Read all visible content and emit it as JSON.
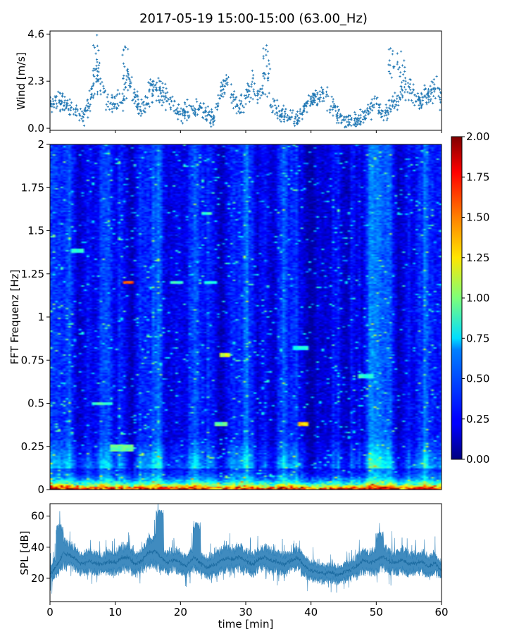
{
  "title": "2017-05-19 15:00-15:00 (63.00_Hz)",
  "chart_data": [
    {
      "type": "scatter",
      "panel": "wind",
      "ylabel": "Wind [m/s]",
      "yticks": [
        "0.0",
        "2.3",
        "4.6"
      ],
      "ytick_values": [
        0.0,
        2.3,
        4.6
      ],
      "xlim": [
        0,
        60
      ],
      "ylim": [
        -0.1,
        4.75
      ],
      "color": "#1f77b4",
      "marker": "plus",
      "segments": [
        {
          "x": [
            0,
            2,
            3,
            4,
            5,
            6,
            7,
            8,
            9,
            10,
            11,
            12,
            13,
            14,
            15,
            16,
            17,
            18,
            19,
            20
          ],
          "y": [
            1.2,
            1.2,
            1.1,
            0.8,
            0.5,
            1.2,
            2.6,
            2.0,
            1.0,
            1.2,
            1.5,
            2.2,
            1.6,
            0.9,
            1.5,
            2.2,
            1.8,
            1.3,
            1.0,
            0.8
          ]
        },
        {
          "x": [
            20,
            22,
            23,
            24,
            25,
            26,
            27,
            28,
            29,
            30,
            31,
            32,
            33,
            34,
            35,
            36,
            37,
            38,
            39,
            40
          ],
          "y": [
            0.8,
            0.9,
            1.0,
            0.8,
            0.4,
            1.6,
            2.4,
            1.5,
            1.0,
            1.5,
            2.2,
            1.6,
            2.3,
            1.4,
            0.8,
            0.6,
            0.5,
            0.4,
            0.9,
            1.3
          ]
        },
        {
          "x": [
            40,
            42,
            43,
            44,
            45,
            46,
            47,
            48,
            49,
            50,
            51,
            52,
            53,
            54,
            55,
            56,
            57,
            58,
            59,
            60
          ],
          "y": [
            1.3,
            1.6,
            1.2,
            0.7,
            0.4,
            0.3,
            0.4,
            0.6,
            0.9,
            1.4,
            0.7,
            1.0,
            1.3,
            1.8,
            2.1,
            1.5,
            1.4,
            1.6,
            1.9,
            1.5
          ]
        }
      ],
      "peaks": [
        {
          "x": 7.2,
          "y": 4.55
        },
        {
          "x": 11.5,
          "y": 4.0
        },
        {
          "x": 33.2,
          "y": 4.05
        },
        {
          "x": 52.2,
          "y": 3.9
        },
        {
          "x": 53.8,
          "y": 3.75
        }
      ]
    },
    {
      "type": "heatmap",
      "panel": "spectrogram",
      "ylabel": "FFT Frequenz [Hz]",
      "yticks": [
        "0",
        "0.25",
        "0.5",
        "0.75",
        "1",
        "1.25",
        "1.5",
        "1.75",
        "2"
      ],
      "ytick_values": [
        0,
        0.25,
        0.5,
        0.75,
        1.0,
        1.25,
        1.5,
        1.75,
        2.0
      ],
      "xlim": [
        0,
        60
      ],
      "ylim": [
        0,
        2
      ],
      "colormap": "jet",
      "colorbar": {
        "vmin": 0.0,
        "vmax": 2.0,
        "ticks": [
          "0.00",
          "0.25",
          "0.50",
          "0.75",
          "1.00",
          "1.25",
          "1.50",
          "1.75",
          "2.00"
        ],
        "tick_values": [
          0,
          0.25,
          0.5,
          0.75,
          1.0,
          1.25,
          1.5,
          1.75,
          2.0
        ]
      },
      "base_level": 0.28,
      "noise": 0.09,
      "low_freq_peak": 1.95,
      "hotspots": [
        {
          "x": 12.2,
          "y": 1.2,
          "w": 1.6,
          "h": 0.012,
          "v": 1.65
        },
        {
          "x": 19.5,
          "y": 1.2,
          "w": 1.8,
          "h": 0.012,
          "v": 0.9
        },
        {
          "x": 24.5,
          "y": 1.2,
          "w": 2.0,
          "h": 0.012,
          "v": 0.85
        },
        {
          "x": 26.8,
          "y": 0.78,
          "w": 1.6,
          "h": 0.012,
          "v": 1.25
        },
        {
          "x": 38.8,
          "y": 0.38,
          "w": 1.8,
          "h": 0.015,
          "v": 1.45
        },
        {
          "x": 26.3,
          "y": 0.38,
          "w": 2.0,
          "h": 0.012,
          "v": 1.0
        },
        {
          "x": 8.0,
          "y": 0.5,
          "w": 3.0,
          "h": 0.01,
          "v": 0.9
        },
        {
          "x": 11.0,
          "y": 0.24,
          "w": 4.0,
          "h": 0.02,
          "v": 1.0
        },
        {
          "x": 4.2,
          "y": 1.38,
          "w": 2.0,
          "h": 0.012,
          "v": 0.85
        },
        {
          "x": 24.0,
          "y": 1.6,
          "w": 2.0,
          "h": 0.01,
          "v": 0.9
        },
        {
          "x": 38.5,
          "y": 0.82,
          "w": 2.5,
          "h": 0.012,
          "v": 0.85
        },
        {
          "x": 48.5,
          "y": 0.66,
          "w": 2.5,
          "h": 0.012,
          "v": 0.85
        }
      ]
    },
    {
      "type": "line",
      "panel": "spl",
      "ylabel": "SPL [dB]",
      "xlabel": "time [min]",
      "yticks": [
        "20",
        "40",
        "60"
      ],
      "ytick_values": [
        20,
        40,
        60
      ],
      "xticks": [
        "0",
        "10",
        "20",
        "30",
        "40",
        "50",
        "60"
      ],
      "xtick_values": [
        0,
        10,
        20,
        30,
        40,
        50,
        60
      ],
      "xlim": [
        0,
        60
      ],
      "ylim": [
        5,
        68
      ],
      "color": "#1f77b4",
      "x": [
        0,
        1,
        2,
        3,
        4,
        5,
        6,
        7,
        8,
        9,
        10,
        11,
        12,
        13,
        14,
        15,
        16,
        17,
        18,
        19,
        20,
        21,
        22,
        23,
        24,
        25,
        26,
        27,
        28,
        29,
        30,
        31,
        32,
        33,
        34,
        35,
        36,
        37,
        38,
        39,
        40,
        41,
        42,
        43,
        44,
        45,
        46,
        47,
        48,
        49,
        50,
        51,
        52,
        53,
        54,
        55,
        56,
        57,
        58,
        59,
        60
      ],
      "y": [
        22,
        28,
        36,
        35,
        32,
        29,
        31,
        30,
        29,
        31,
        30,
        33,
        34,
        29,
        31,
        36,
        38,
        34,
        30,
        32,
        30,
        28,
        34,
        30,
        27,
        28,
        31,
        33,
        32,
        34,
        31,
        29,
        32,
        34,
        31,
        30,
        29,
        32,
        33,
        28,
        25,
        24,
        23,
        24,
        22,
        24,
        25,
        28,
        32,
        30,
        32,
        34,
        31,
        30,
        32,
        29,
        30,
        31,
        28,
        30,
        24
      ],
      "spread": [
        4,
        6,
        8,
        7,
        6,
        6,
        6,
        6,
        6,
        6,
        6,
        7,
        7,
        6,
        6,
        8,
        9,
        7,
        6,
        6,
        6,
        6,
        7,
        6,
        6,
        6,
        6,
        7,
        6,
        7,
        6,
        6,
        6,
        7,
        6,
        6,
        6,
        6,
        6,
        6,
        5,
        5,
        5,
        5,
        5,
        5,
        5,
        6,
        7,
        6,
        7,
        7,
        6,
        6,
        7,
        6,
        6,
        6,
        6,
        6,
        5
      ],
      "peaks": [
        {
          "x": 1.5,
          "y": 55
        },
        {
          "x": 16.8,
          "y": 64
        },
        {
          "x": 22.5,
          "y": 56
        },
        {
          "x": 50.5,
          "y": 50
        }
      ]
    }
  ]
}
